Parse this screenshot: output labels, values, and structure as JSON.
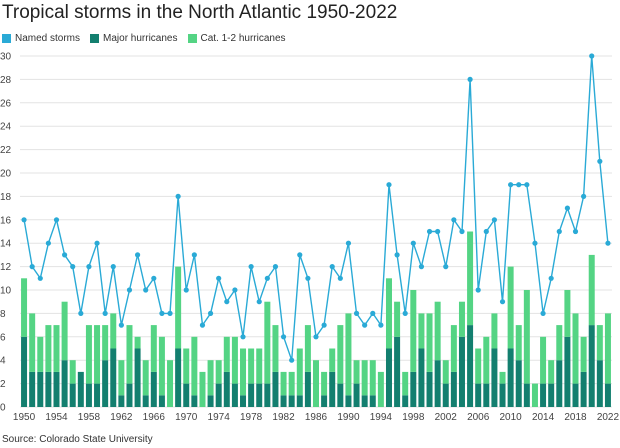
{
  "title": "Tropical storms in the North Atlantic 1950-2022",
  "source": "Source: Colorado State University",
  "legend": [
    {
      "label": "Named storms",
      "color": "#2aaad6"
    },
    {
      "label": "Major hurricanes",
      "color": "#137f6f"
    },
    {
      "label": "Cat. 1-2 hurricanes",
      "color": "#54d484"
    }
  ],
  "chart_data": {
    "type": "bar+line",
    "title": "Tropical storms in the North Atlantic 1950-2022",
    "years": [
      1950,
      1951,
      1952,
      1953,
      1954,
      1955,
      1956,
      1957,
      1958,
      1959,
      1960,
      1961,
      1962,
      1963,
      1964,
      1965,
      1966,
      1967,
      1968,
      1969,
      1970,
      1971,
      1972,
      1973,
      1974,
      1975,
      1976,
      1977,
      1978,
      1979,
      1980,
      1981,
      1982,
      1983,
      1984,
      1985,
      1986,
      1987,
      1988,
      1989,
      1990,
      1991,
      1992,
      1993,
      1994,
      1995,
      1996,
      1997,
      1998,
      1999,
      2000,
      2001,
      2002,
      2003,
      2004,
      2005,
      2006,
      2007,
      2008,
      2009,
      2010,
      2011,
      2012,
      2013,
      2014,
      2015,
      2016,
      2017,
      2018,
      2019,
      2020,
      2021,
      2022
    ],
    "x_tick_labels": [
      "1950",
      "1954",
      "1958",
      "1962",
      "1966",
      "1970",
      "1974",
      "1978",
      "1982",
      "1986",
      "1990",
      "1994",
      "1998",
      "2002",
      "2006",
      "2010",
      "2014",
      "2018",
      "2022"
    ],
    "y_ticks": [
      0,
      2,
      4,
      6,
      8,
      10,
      12,
      14,
      16,
      18,
      20,
      22,
      24,
      26,
      28,
      30
    ],
    "ylim": [
      0,
      30
    ],
    "series": [
      {
        "name": "Named storms",
        "type": "line",
        "color": "#2aaad6",
        "values": [
          16,
          12,
          11,
          14,
          16,
          13,
          12,
          8,
          12,
          14,
          8,
          12,
          7,
          10,
          13,
          10,
          11,
          8,
          8,
          18,
          10,
          13,
          7,
          8,
          11,
          9,
          10,
          6,
          12,
          9,
          11,
          12,
          6,
          4,
          13,
          11,
          6,
          7,
          12,
          11,
          14,
          8,
          7,
          8,
          7,
          19,
          13,
          8,
          14,
          12,
          15,
          15,
          12,
          16,
          15,
          28,
          10,
          15,
          16,
          9,
          19,
          19,
          19,
          14,
          8,
          11,
          15,
          17,
          15,
          18,
          30,
          21,
          14
        ]
      },
      {
        "name": "Major hurricanes",
        "type": "bar",
        "color": "#137f6f",
        "values": [
          6,
          3,
          3,
          3,
          3,
          4,
          2,
          3,
          2,
          2,
          4,
          5,
          1,
          2,
          5,
          1,
          3,
          1,
          0,
          5,
          2,
          1,
          0,
          1,
          2,
          3,
          2,
          1,
          2,
          2,
          2,
          3,
          1,
          1,
          1,
          3,
          0,
          1,
          3,
          2,
          1,
          2,
          1,
          1,
          0,
          5,
          6,
          1,
          3,
          5,
          3,
          4,
          2,
          3,
          6,
          7,
          2,
          2,
          5,
          2,
          5,
          4,
          2,
          0,
          2,
          2,
          4,
          6,
          2,
          3,
          7,
          4,
          2
        ]
      },
      {
        "name": "Cat. 1-2 hurricanes",
        "type": "bar",
        "color": "#54d484",
        "values": [
          5,
          5,
          3,
          4,
          4,
          5,
          2,
          0,
          5,
          5,
          3,
          3,
          3,
          5,
          1,
          3,
          4,
          5,
          4,
          7,
          3,
          5,
          3,
          3,
          2,
          3,
          4,
          4,
          3,
          3,
          7,
          4,
          2,
          2,
          4,
          4,
          4,
          2,
          2,
          5,
          7,
          2,
          3,
          3,
          3,
          6,
          3,
          2,
          7,
          3,
          5,
          5,
          2,
          4,
          3,
          8,
          3,
          4,
          3,
          1,
          7,
          3,
          8,
          2,
          4,
          2,
          3,
          4,
          6,
          3,
          6,
          3,
          6
        ]
      }
    ]
  }
}
